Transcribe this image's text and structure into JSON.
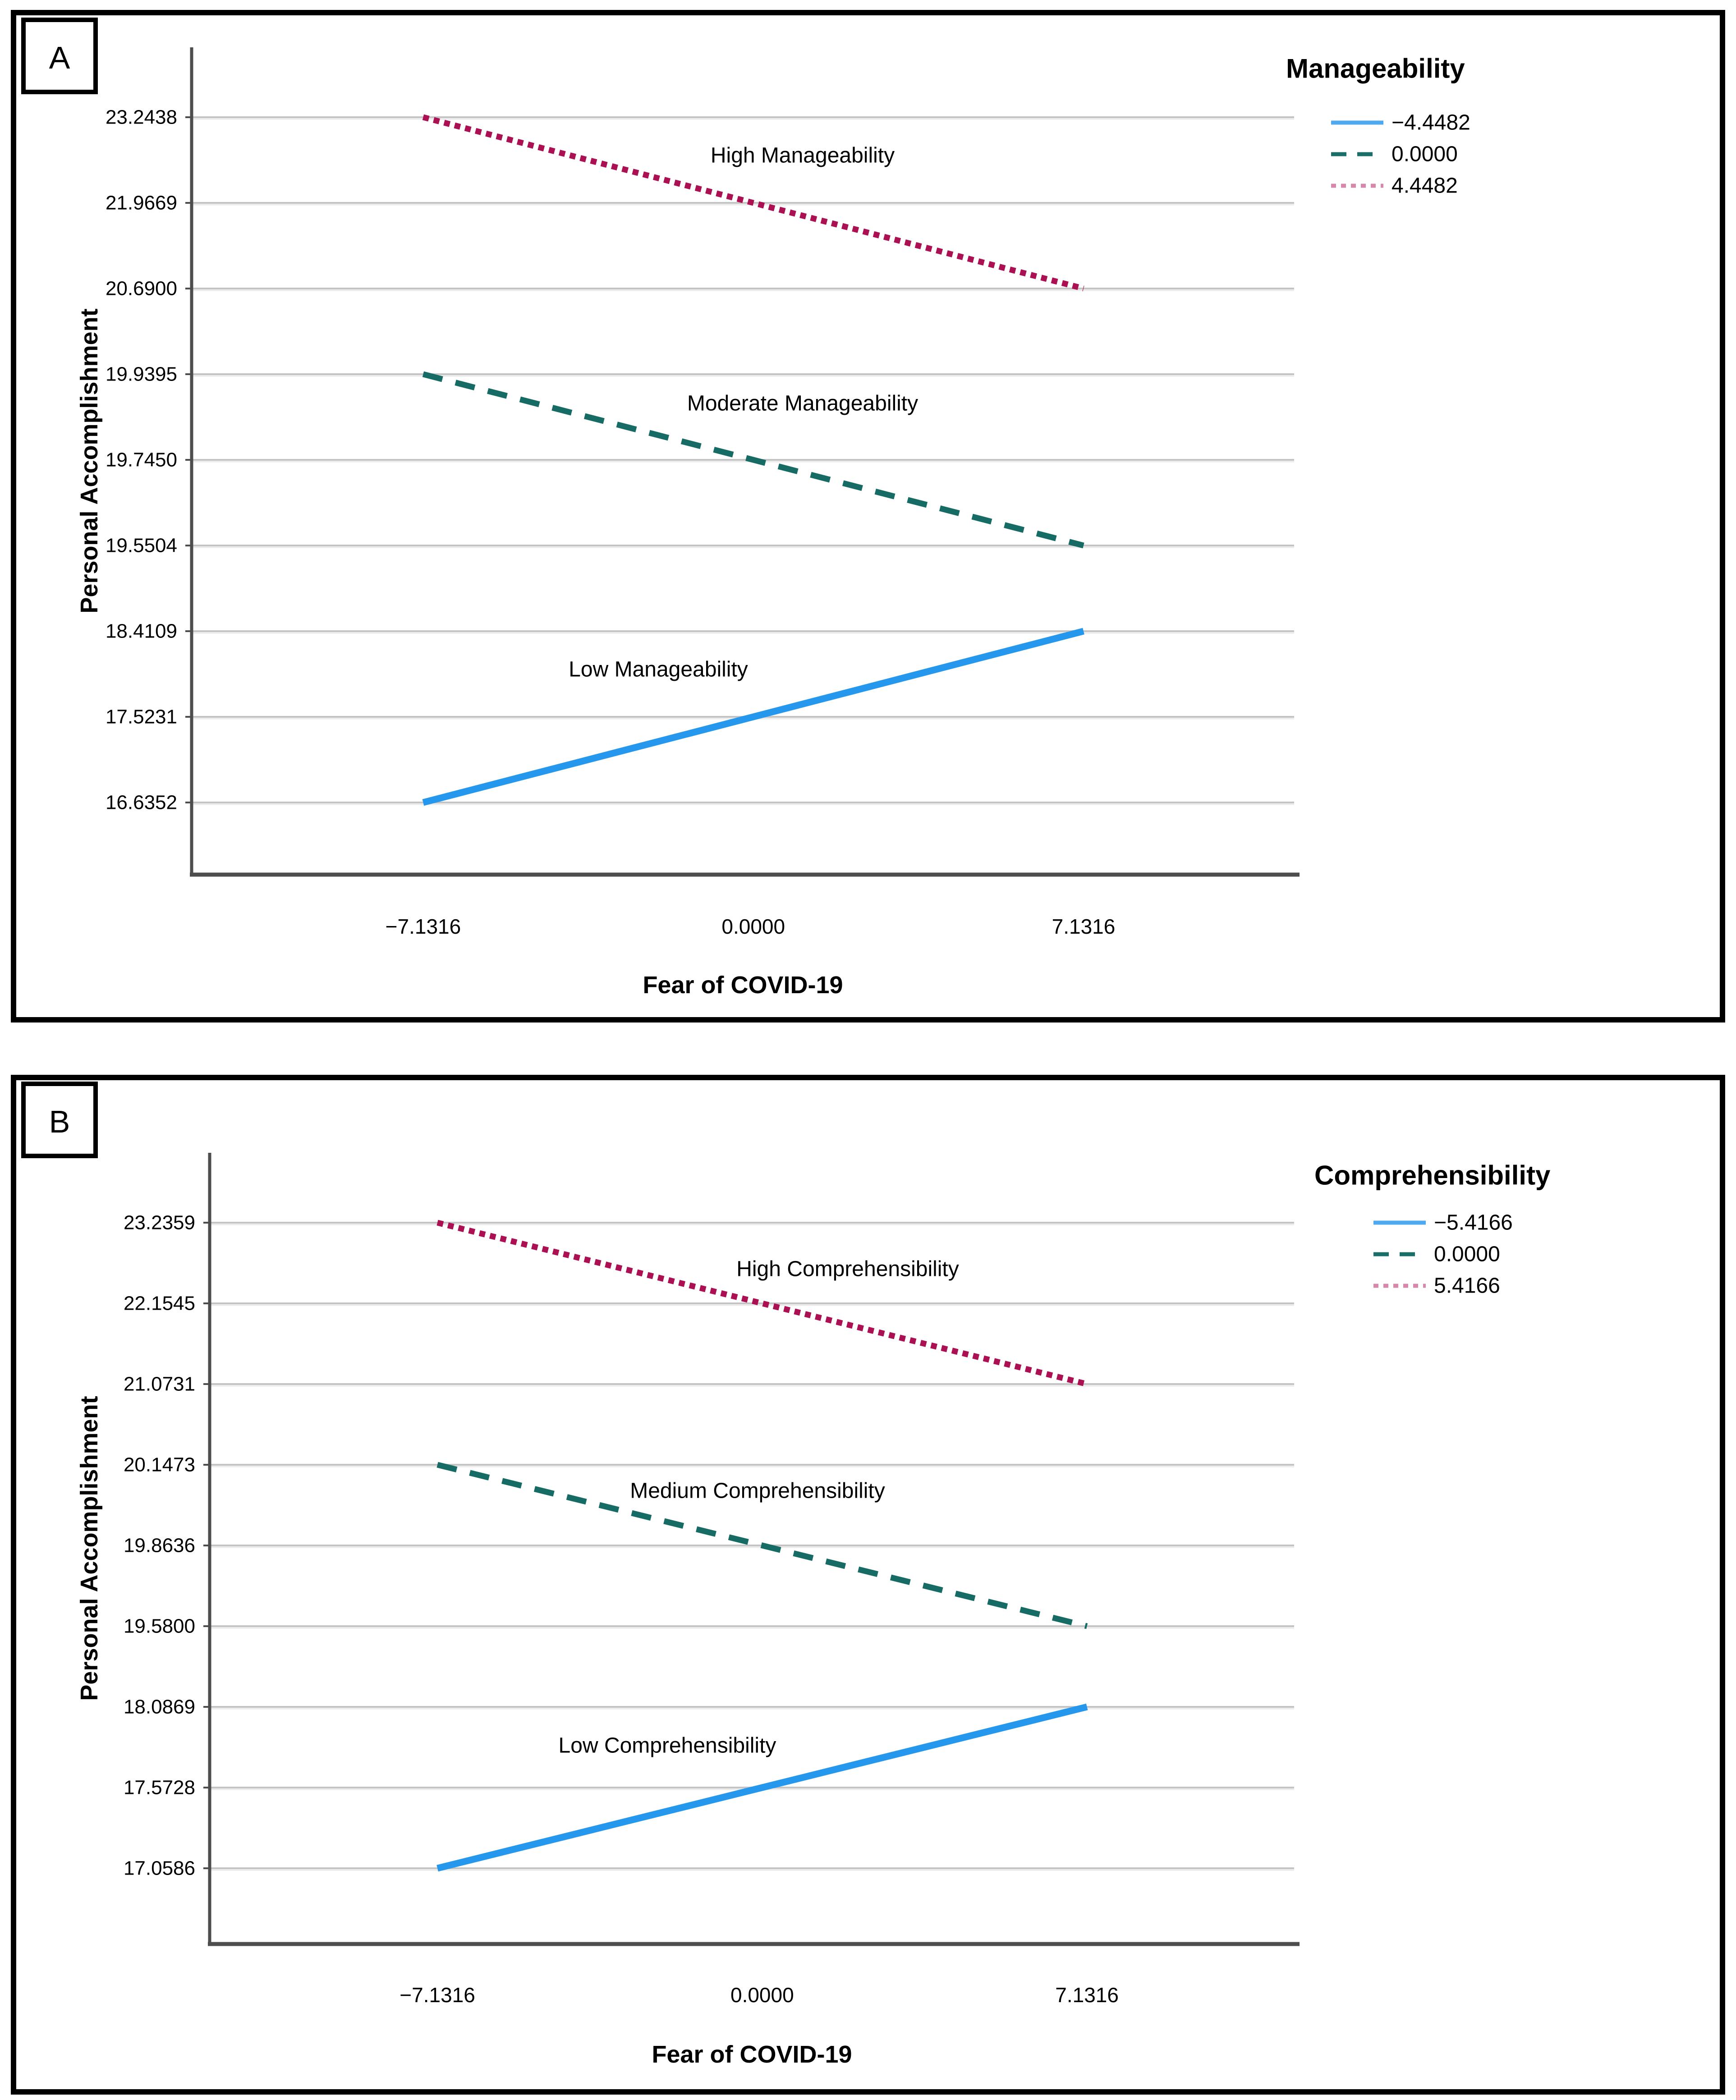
{
  "figure": {
    "background": "#ffffff",
    "panel_border_color": "#000000",
    "gridline_color": "#c4c4c4",
    "gridline_shadow_color": "#eaeaea",
    "axis_line_color": "#4d4d4d",
    "tick_text_color": "#1a1a1a"
  },
  "chart_data": [
    {
      "type": "line",
      "panel_label": "A",
      "title": "",
      "xlabel": "Fear of COVID-19",
      "ylabel": "Personal Accomplishment",
      "x_tick_labels": [
        "−7.1316",
        "0.0000",
        "7.1316"
      ],
      "x_tick_values": [
        -7.1316,
        0.0,
        7.1316
      ],
      "y_tick_labels": [
        "23.2438",
        "21.9669",
        "20.6900",
        "19.9395",
        "19.7450",
        "19.5504",
        "18.4109",
        "17.5231",
        "16.6352"
      ],
      "y_tick_values": [
        23.2438,
        21.9669,
        20.69,
        19.9395,
        19.745,
        19.5504,
        18.4109,
        17.5231,
        16.6352
      ],
      "y_axis_style": "ticks evenly spaced, labeled with exact data values (SPSS style)",
      "grid": "horizontal gridlines at every y tick, no vertical gridlines",
      "legend": {
        "title": "Manageability",
        "position": "top-right",
        "entries": [
          {
            "label": "−4.4482",
            "style": "solid",
            "color": "#4FA9EF"
          },
          {
            "label": "0.0000",
            "style": "dashed",
            "color": "#1C6F68"
          },
          {
            "label": "4.4482",
            "style": "dotted",
            "color": "#D787A9"
          }
        ]
      },
      "series": [
        {
          "name": "4.4482",
          "annotation": "High Manageability",
          "style": "dotted",
          "color": "#AA1052",
          "points": [
            [
              -7.1316,
              23.2438
            ],
            [
              7.1316,
              20.69
            ]
          ]
        },
        {
          "name": "0.0000",
          "annotation": "Moderate Manageability",
          "style": "dashed",
          "color": "#176B65",
          "points": [
            [
              -7.1316,
              19.9395
            ],
            [
              7.1316,
              19.5504
            ]
          ]
        },
        {
          "name": "−4.4482",
          "annotation": "Low Manageability",
          "style": "solid",
          "color": "#2598EE",
          "points": [
            [
              -7.1316,
              16.6352
            ],
            [
              7.1316,
              18.4109
            ]
          ]
        }
      ]
    },
    {
      "type": "line",
      "panel_label": "B",
      "title": "",
      "xlabel": "Fear of COVID-19",
      "ylabel": "Personal Accomplishment",
      "x_tick_labels": [
        "−7.1316",
        "0.0000",
        "7.1316"
      ],
      "x_tick_values": [
        -7.1316,
        0.0,
        7.1316
      ],
      "y_tick_labels": [
        "23.2359",
        "22.1545",
        "21.0731",
        "20.1473",
        "19.8636",
        "19.5800",
        "18.0869",
        "17.5728",
        "17.0586"
      ],
      "y_tick_values": [
        23.2359,
        22.1545,
        21.0731,
        20.1473,
        19.8636,
        19.58,
        18.0869,
        17.5728,
        17.0586
      ],
      "y_axis_style": "ticks evenly spaced, labeled with exact data values (SPSS style)",
      "grid": "horizontal gridlines at every y tick, no vertical gridlines",
      "legend": {
        "title": "Comprehensibility",
        "position": "top-right",
        "entries": [
          {
            "label": "−5.4166",
            "style": "solid",
            "color": "#4FA9EF"
          },
          {
            "label": "0.0000",
            "style": "dashed",
            "color": "#1C6F68"
          },
          {
            "label": "5.4166",
            "style": "dotted",
            "color": "#D787A9"
          }
        ]
      },
      "series": [
        {
          "name": "5.4166",
          "annotation": "High Comprehensibility",
          "style": "dotted",
          "color": "#AA1052",
          "points": [
            [
              -7.1316,
              23.2359
            ],
            [
              7.1316,
              21.0731
            ]
          ]
        },
        {
          "name": "0.0000",
          "annotation": "Medium Comprehensibility",
          "style": "dashed",
          "color": "#176B65",
          "points": [
            [
              -7.1316,
              20.1473
            ],
            [
              7.1316,
              19.58
            ]
          ]
        },
        {
          "name": "−5.4166",
          "annotation": "Low Comprehensibility",
          "style": "solid",
          "color": "#2598EE",
          "points": [
            [
              -7.1316,
              17.0586
            ],
            [
              7.1316,
              18.0869
            ]
          ]
        }
      ]
    }
  ]
}
